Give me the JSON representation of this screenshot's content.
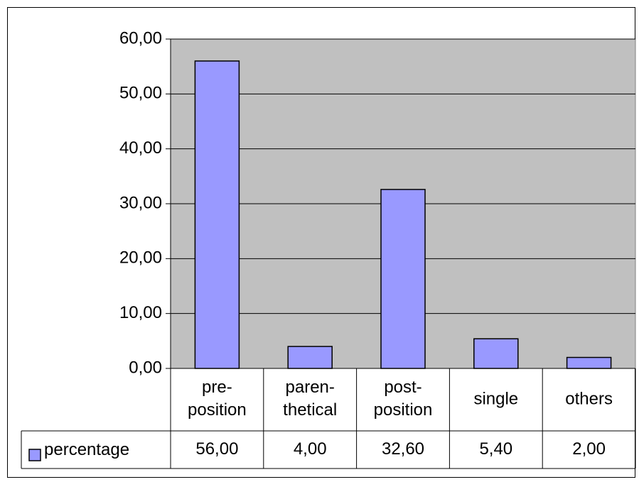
{
  "chart_data": {
    "type": "bar",
    "categories": [
      "pre-position",
      "paren-thetical",
      "post-position",
      "single",
      "others"
    ],
    "series": [
      {
        "name": "percentage",
        "color": "#9999ff",
        "values": [
          56,
          4,
          32.6,
          5.4,
          2
        ],
        "value_labels": [
          "56,00",
          "4,00",
          "32,60",
          "5,40",
          "2,00"
        ]
      }
    ],
    "ylim": [
      0,
      60
    ],
    "yticks": [
      {
        "value": 0,
        "label": "0,00"
      },
      {
        "value": 10,
        "label": "10,00"
      },
      {
        "value": 20,
        "label": "20,00"
      },
      {
        "value": 30,
        "label": "30,00"
      },
      {
        "value": 40,
        "label": "40,00"
      },
      {
        "value": 50,
        "label": "50,00"
      },
      {
        "value": 60,
        "label": "60,00"
      }
    ],
    "grid": true,
    "plot_background": "#c0c0c0"
  }
}
